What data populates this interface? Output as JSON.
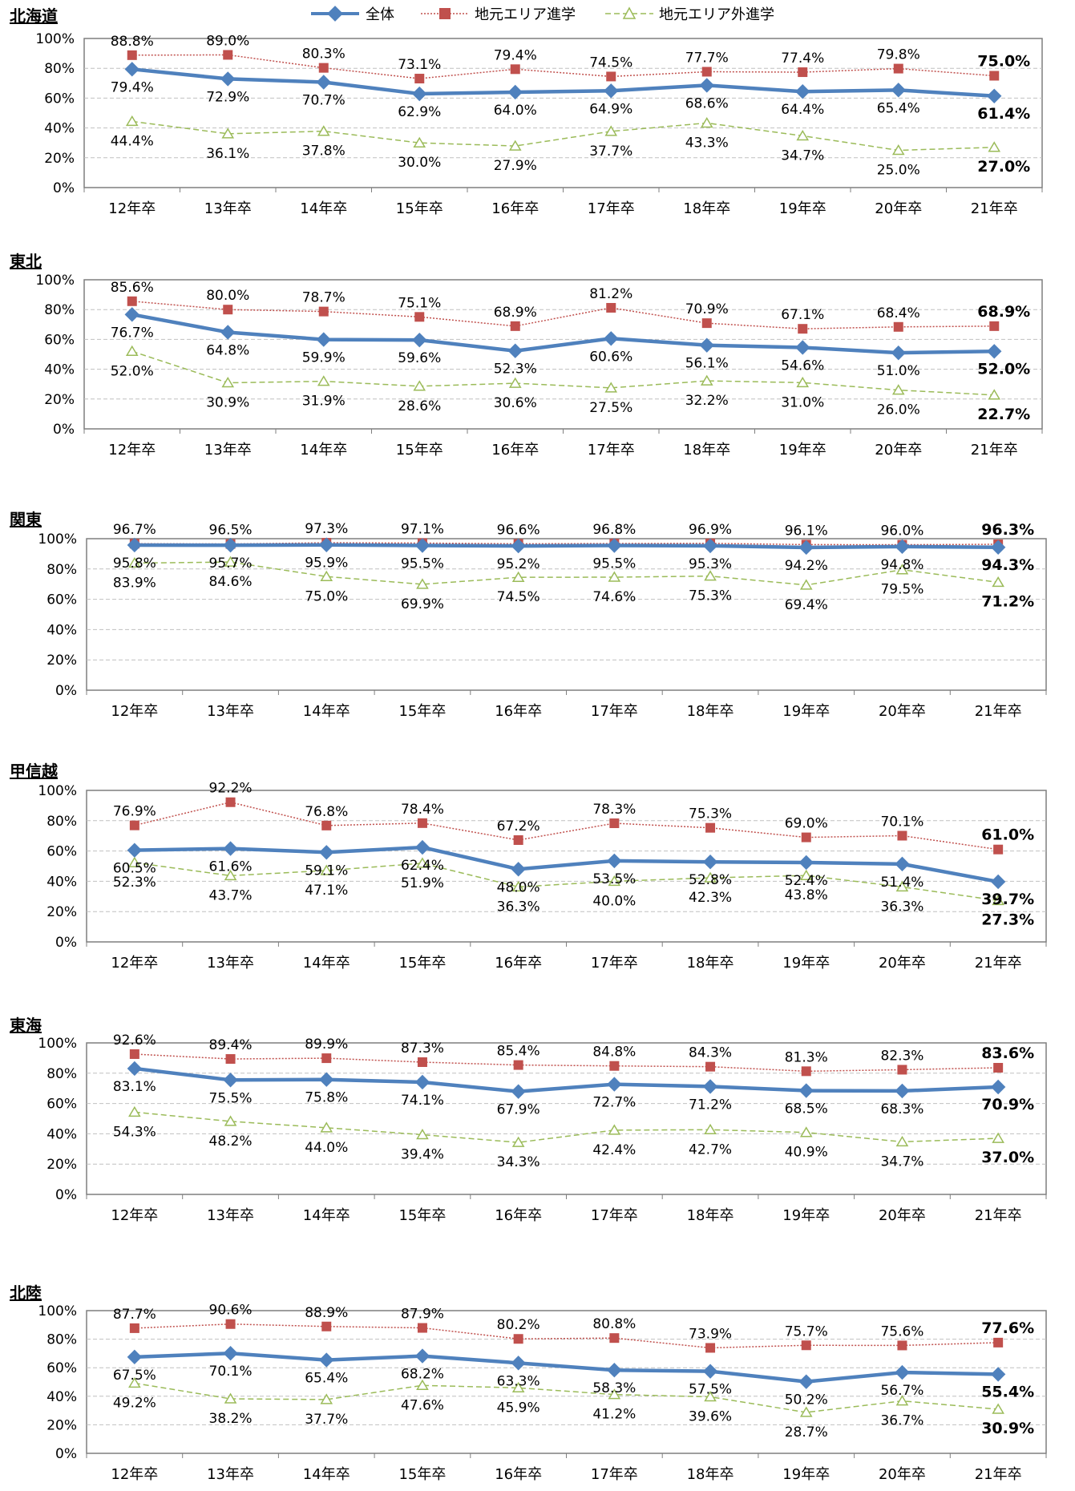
{
  "legend": [
    {
      "name": "全体",
      "color": "#4F81BD",
      "marker": "diamond"
    },
    {
      "name": "地元エリア進学",
      "color": "#C0504D",
      "marker": "square"
    },
    {
      "name": "地元エリア外進学",
      "color": "#9BBB59",
      "marker": "triangle"
    }
  ],
  "chart_data": [
    {
      "type": "line",
      "title": "北海道",
      "categories": [
        "12年卒",
        "13年卒",
        "14年卒",
        "15年卒",
        "16年卒",
        "17年卒",
        "18年卒",
        "19年卒",
        "20年卒",
        "21年卒"
      ],
      "ylim": [
        0,
        100
      ],
      "yticks": [
        "0%",
        "20%",
        "40%",
        "60%",
        "80%",
        "100%"
      ],
      "series": [
        {
          "name": "全体",
          "values": [
            79.4,
            72.9,
            70.7,
            62.9,
            64.0,
            64.9,
            68.6,
            64.4,
            65.4,
            61.4
          ],
          "labels": [
            "79.4%",
            "72.9%",
            "70.7%",
            "62.9%",
            "64.0%",
            "64.9%",
            "68.6%",
            "64.4%",
            "65.4%",
            "61.4%"
          ]
        },
        {
          "name": "地元エリア進学",
          "values": [
            88.8,
            89.0,
            80.3,
            73.1,
            79.4,
            74.5,
            77.7,
            77.4,
            79.8,
            75.0
          ],
          "labels": [
            "88.8%",
            "89.0%",
            "80.3%",
            "73.1%",
            "79.4%",
            "74.5%",
            "77.7%",
            "77.4%",
            "79.8%",
            "75.0%"
          ]
        },
        {
          "name": "地元エリア外進学",
          "values": [
            44.4,
            36.1,
            37.8,
            30.0,
            27.9,
            37.7,
            43.3,
            34.7,
            25.0,
            27.0
          ],
          "labels": [
            "44.4%",
            "36.1%",
            "37.8%",
            "30.0%",
            "27.9%",
            "37.7%",
            "43.3%",
            "34.7%",
            "25.0%",
            "27.0%"
          ]
        }
      ]
    },
    {
      "type": "line",
      "title": "東北",
      "categories": [
        "12年卒",
        "13年卒",
        "14年卒",
        "15年卒",
        "16年卒",
        "17年卒",
        "18年卒",
        "19年卒",
        "20年卒",
        "21年卒"
      ],
      "ylim": [
        0,
        100
      ],
      "yticks": [
        "0%",
        "20%",
        "40%",
        "60%",
        "80%",
        "100%"
      ],
      "series": [
        {
          "name": "全体",
          "values": [
            76.7,
            64.8,
            59.9,
            59.6,
            52.3,
            60.6,
            56.1,
            54.6,
            51.0,
            52.0
          ],
          "labels": [
            "76.7%",
            "64.8%",
            "59.9%",
            "59.6%",
            "52.3%",
            "60.6%",
            "56.1%",
            "54.6%",
            "51.0%",
            "52.0%"
          ]
        },
        {
          "name": "地元エリア進学",
          "values": [
            85.6,
            80.0,
            78.7,
            75.1,
            68.9,
            81.2,
            70.9,
            67.1,
            68.4,
            68.9
          ],
          "labels": [
            "85.6%",
            "80.0%",
            "78.7%",
            "75.1%",
            "68.9%",
            "81.2%",
            "70.9%",
            "67.1%",
            "68.4%",
            "68.9%"
          ]
        },
        {
          "name": "地元エリア外進学",
          "values": [
            52.0,
            30.9,
            31.9,
            28.6,
            30.6,
            27.5,
            32.2,
            31.0,
            26.0,
            22.7
          ],
          "labels": [
            "52.0%",
            "30.9%",
            "31.9%",
            "28.6%",
            "30.6%",
            "27.5%",
            "32.2%",
            "31.0%",
            "26.0%",
            "22.7%"
          ]
        }
      ]
    },
    {
      "type": "line",
      "title": "関東",
      "categories": [
        "12年卒",
        "13年卒",
        "14年卒",
        "15年卒",
        "16年卒",
        "17年卒",
        "18年卒",
        "19年卒",
        "20年卒",
        "21年卒"
      ],
      "ylim": [
        0,
        100
      ],
      "yticks": [
        "0%",
        "20%",
        "40%",
        "60%",
        "80%",
        "100%"
      ],
      "series": [
        {
          "name": "全体",
          "values": [
            95.8,
            95.7,
            95.9,
            95.5,
            95.2,
            95.5,
            95.3,
            94.2,
            94.8,
            94.3
          ],
          "labels": [
            "95.8%",
            "95.7%",
            "95.9%",
            "95.5%",
            "95.2%",
            "95.5%",
            "95.3%",
            "94.2%",
            "94.8%",
            "94.3%"
          ]
        },
        {
          "name": "地元エリア進学",
          "values": [
            96.7,
            96.5,
            97.3,
            97.1,
            96.6,
            96.8,
            96.9,
            96.1,
            96.0,
            96.3
          ],
          "labels": [
            "96.7%",
            "96.5%",
            "97.3%",
            "97.1%",
            "96.6%",
            "96.8%",
            "96.9%",
            "96.1%",
            "96.0%",
            "96.3%"
          ]
        },
        {
          "name": "地元エリア外進学",
          "values": [
            83.9,
            84.6,
            75.0,
            69.9,
            74.5,
            74.6,
            75.3,
            69.4,
            79.5,
            71.2
          ],
          "labels": [
            "83.9%",
            "84.6%",
            "75.0%",
            "69.9%",
            "74.5%",
            "74.6%",
            "75.3%",
            "69.4%",
            "79.5%",
            "71.2%"
          ]
        }
      ]
    },
    {
      "type": "line",
      "title": "甲信越",
      "categories": [
        "12年卒",
        "13年卒",
        "14年卒",
        "15年卒",
        "16年卒",
        "17年卒",
        "18年卒",
        "19年卒",
        "20年卒",
        "21年卒"
      ],
      "ylim": [
        0,
        100
      ],
      "yticks": [
        "0%",
        "20%",
        "40%",
        "60%",
        "80%",
        "100%"
      ],
      "series": [
        {
          "name": "全体",
          "values": [
            60.5,
            61.6,
            59.1,
            62.4,
            48.0,
            53.5,
            52.8,
            52.4,
            51.4,
            39.7
          ],
          "labels": [
            "60.5%",
            "61.6%",
            "59.1%",
            "62.4%",
            "48.0%",
            "53.5%",
            "52.8%",
            "52.4%",
            "51.4%",
            "39.7%"
          ]
        },
        {
          "name": "地元エリア進学",
          "values": [
            76.9,
            92.2,
            76.8,
            78.4,
            67.2,
            78.3,
            75.3,
            69.0,
            70.1,
            61.0
          ],
          "labels": [
            "76.9%",
            "92.2%",
            "76.8%",
            "78.4%",
            "67.2%",
            "78.3%",
            "75.3%",
            "69.0%",
            "70.1%",
            "61.0%"
          ]
        },
        {
          "name": "地元エリア外進学",
          "values": [
            52.3,
            43.7,
            47.1,
            51.9,
            36.3,
            40.0,
            42.3,
            43.8,
            36.3,
            27.3
          ],
          "labels": [
            "52.3%",
            "43.7%",
            "47.1%",
            "51.9%",
            "36.3%",
            "40.0%",
            "42.3%",
            "43.8%",
            "36.3%",
            "27.3%"
          ]
        }
      ]
    },
    {
      "type": "line",
      "title": "東海",
      "categories": [
        "12年卒",
        "13年卒",
        "14年卒",
        "15年卒",
        "16年卒",
        "17年卒",
        "18年卒",
        "19年卒",
        "20年卒",
        "21年卒"
      ],
      "ylim": [
        0,
        100
      ],
      "yticks": [
        "0%",
        "20%",
        "40%",
        "60%",
        "80%",
        "100%"
      ],
      "series": [
        {
          "name": "全体",
          "values": [
            83.1,
            75.5,
            75.8,
            74.1,
            67.9,
            72.7,
            71.2,
            68.5,
            68.3,
            70.9
          ],
          "labels": [
            "83.1%",
            "75.5%",
            "75.8%",
            "74.1%",
            "67.9%",
            "72.7%",
            "71.2%",
            "68.5%",
            "68.3%",
            "70.9%"
          ]
        },
        {
          "name": "地元エリア進学",
          "values": [
            92.6,
            89.4,
            89.9,
            87.3,
            85.4,
            84.8,
            84.3,
            81.3,
            82.3,
            83.6
          ],
          "labels": [
            "92.6%",
            "89.4%",
            "89.9%",
            "87.3%",
            "85.4%",
            "84.8%",
            "84.3%",
            "81.3%",
            "82.3%",
            "83.6%"
          ]
        },
        {
          "name": "地元エリア外進学",
          "values": [
            54.3,
            48.2,
            44.0,
            39.4,
            34.3,
            42.4,
            42.7,
            40.9,
            34.7,
            37.0
          ],
          "labels": [
            "54.3%",
            "48.2%",
            "44.0%",
            "39.4%",
            "34.3%",
            "42.4%",
            "42.7%",
            "40.9%",
            "34.7%",
            "37.0%"
          ]
        }
      ]
    },
    {
      "type": "line",
      "title": "北陸",
      "categories": [
        "12年卒",
        "13年卒",
        "14年卒",
        "15年卒",
        "16年卒",
        "17年卒",
        "18年卒",
        "19年卒",
        "20年卒",
        "21年卒"
      ],
      "ylim": [
        0,
        100
      ],
      "yticks": [
        "0%",
        "20%",
        "40%",
        "60%",
        "80%",
        "100%"
      ],
      "series": [
        {
          "name": "全体",
          "values": [
            67.5,
            70.1,
            65.4,
            68.2,
            63.3,
            58.3,
            57.5,
            50.2,
            56.7,
            55.4
          ],
          "labels": [
            "67.5%",
            "70.1%",
            "65.4%",
            "68.2%",
            "63.3%",
            "58.3%",
            "57.5%",
            "50.2%",
            "56.7%",
            "55.4%"
          ]
        },
        {
          "name": "地元エリア進学",
          "values": [
            87.7,
            90.6,
            88.9,
            87.9,
            80.2,
            80.8,
            73.9,
            75.7,
            75.6,
            77.6
          ],
          "labels": [
            "87.7%",
            "90.6%",
            "88.9%",
            "87.9%",
            "80.2%",
            "80.8%",
            "73.9%",
            "75.7%",
            "75.6%",
            "77.6%"
          ]
        },
        {
          "name": "地元エリア外進学",
          "values": [
            49.2,
            38.2,
            37.7,
            47.6,
            45.9,
            41.2,
            39.6,
            28.7,
            36.7,
            30.9
          ],
          "labels": [
            "49.2%",
            "38.2%",
            "37.7%",
            "47.6%",
            "45.9%",
            "41.2%",
            "39.6%",
            "28.7%",
            "36.7%",
            "30.9%"
          ]
        }
      ]
    }
  ]
}
